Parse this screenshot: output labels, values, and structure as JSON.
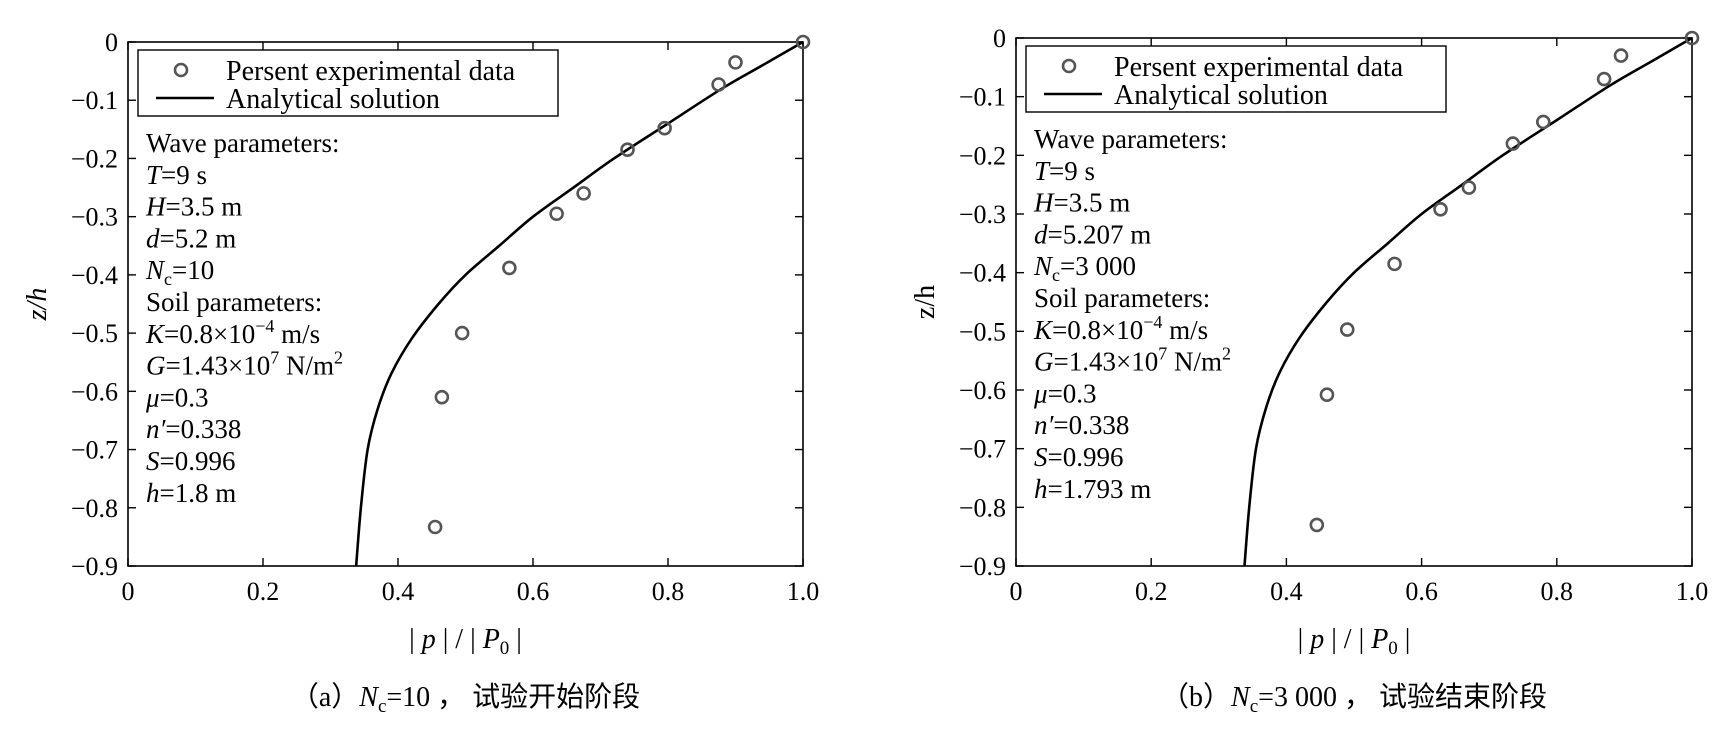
{
  "chart_data": [
    {
      "type": "scatter",
      "xlabel": "| p | / | P0 |",
      "ylabel": "z/h",
      "xlim": [
        0,
        1.0
      ],
      "ylim": [
        -0.9,
        0
      ],
      "xticks": [
        "0",
        "0.2",
        "0.4",
        "0.6",
        "0.8",
        "1.0"
      ],
      "yticks": [
        "0",
        "−0.1",
        "−0.2",
        "−0.3",
        "−0.4",
        "−0.5",
        "−0.6",
        "−0.7",
        "−0.8",
        "−0.9"
      ],
      "legend_position": "top-left",
      "series": [
        {
          "name": "Persent experimental data",
          "kind": "scatter",
          "x": [
            1.0,
            0.9,
            0.875,
            0.795,
            0.74,
            0.675,
            0.635,
            0.565,
            0.495,
            0.465,
            0.455
          ],
          "y": [
            0.0,
            -0.035,
            -0.073,
            -0.148,
            -0.185,
            -0.26,
            -0.295,
            -0.388,
            -0.5,
            -0.61,
            -0.833
          ]
        },
        {
          "name": "Analytical solution",
          "kind": "line",
          "x": [
            1.0,
            0.94,
            0.88,
            0.8,
            0.72,
            0.66,
            0.6,
            0.55,
            0.5,
            0.46,
            0.42,
            0.39,
            0.37,
            0.355,
            0.345,
            0.338
          ],
          "y": [
            0.0,
            -0.04,
            -0.08,
            -0.14,
            -0.2,
            -0.25,
            -0.3,
            -0.35,
            -0.4,
            -0.45,
            -0.51,
            -0.57,
            -0.63,
            -0.7,
            -0.8,
            -0.9
          ]
        }
      ],
      "annotations": {
        "wave_title": "Wave parameters:",
        "wave": [
          {
            "sym": "T",
            "val": "=9 s"
          },
          {
            "sym": "H",
            "val": "=3.5 m"
          },
          {
            "sym": "d",
            "val": "=5.2 m"
          },
          {
            "sym": "N",
            "sub": "c",
            "val": "=10"
          }
        ],
        "soil_title": "Soil parameters:",
        "soil": [
          {
            "sym": "K",
            "val": "=0.8×10",
            "sup": "−4",
            "val2": " m/s"
          },
          {
            "sym": "G",
            "val": "=1.43×10",
            "sup": "7",
            "val2": " N/m",
            "sup2": "2"
          },
          {
            "sym": "μ",
            "val": "=0.3"
          },
          {
            "sym": "n′",
            "val": "=0.338"
          },
          {
            "sym": "S",
            "val": "=0.996"
          },
          {
            "sym": "h",
            "val": "=1.8 m"
          }
        ]
      },
      "caption": {
        "pre": "（a）",
        "sym": "N",
        "sub": "c",
        "post": "=10 ， 试验开始阶段"
      }
    },
    {
      "type": "scatter",
      "xlabel": "| p | / | P0 |",
      "ylabel": "z/h",
      "xlim": [
        0,
        1.0
      ],
      "ylim": [
        -0.9,
        0
      ],
      "xticks": [
        "0",
        "0.2",
        "0.4",
        "0.6",
        "0.8",
        "1.0"
      ],
      "yticks": [
        "0",
        "−0.1",
        "−0.2",
        "−0.3",
        "−0.4",
        "−0.5",
        "−0.6",
        "−0.7",
        "−0.8",
        "−0.9"
      ],
      "legend_position": "top-left",
      "series": [
        {
          "name": "Persent experimental data",
          "kind": "scatter",
          "x": [
            1.0,
            0.895,
            0.87,
            0.78,
            0.735,
            0.67,
            0.628,
            0.56,
            0.49,
            0.46,
            0.445
          ],
          "y": [
            0.0,
            -0.03,
            -0.07,
            -0.143,
            -0.18,
            -0.255,
            -0.292,
            -0.385,
            -0.497,
            -0.608,
            -0.83
          ]
        },
        {
          "name": "Analytical solution",
          "kind": "line",
          "x": [
            1.0,
            0.94,
            0.88,
            0.8,
            0.72,
            0.66,
            0.6,
            0.55,
            0.5,
            0.46,
            0.42,
            0.39,
            0.37,
            0.355,
            0.345,
            0.338
          ],
          "y": [
            0.0,
            -0.04,
            -0.08,
            -0.14,
            -0.2,
            -0.25,
            -0.3,
            -0.35,
            -0.4,
            -0.45,
            -0.51,
            -0.57,
            -0.63,
            -0.7,
            -0.8,
            -0.9
          ]
        }
      ],
      "annotations": {
        "wave_title": "Wave parameters:",
        "wave": [
          {
            "sym": "T",
            "val": "=9 s"
          },
          {
            "sym": "H",
            "val": "=3.5 m"
          },
          {
            "sym": "d",
            "val": "=5.207 m"
          },
          {
            "sym": "N",
            "sub": "c",
            "val": "=3 000"
          }
        ],
        "soil_title": "Soil parameters:",
        "soil": [
          {
            "sym": "K",
            "val": "=0.8×10",
            "sup": "−4",
            "val2": " m/s"
          },
          {
            "sym": "G",
            "val": "=1.43×10",
            "sup": "7",
            "val2": " N/m",
            "sup2": "2"
          },
          {
            "sym": "μ",
            "val": "=0.3"
          },
          {
            "sym": "n′",
            "val": "=0.338"
          },
          {
            "sym": "S",
            "val": "=0.996"
          },
          {
            "sym": "h",
            "val": "=1.793 m"
          }
        ]
      },
      "caption": {
        "pre": "（b）",
        "sym": "N",
        "sub": "c",
        "post": "=3 000 ， 试验结束阶段"
      }
    }
  ]
}
